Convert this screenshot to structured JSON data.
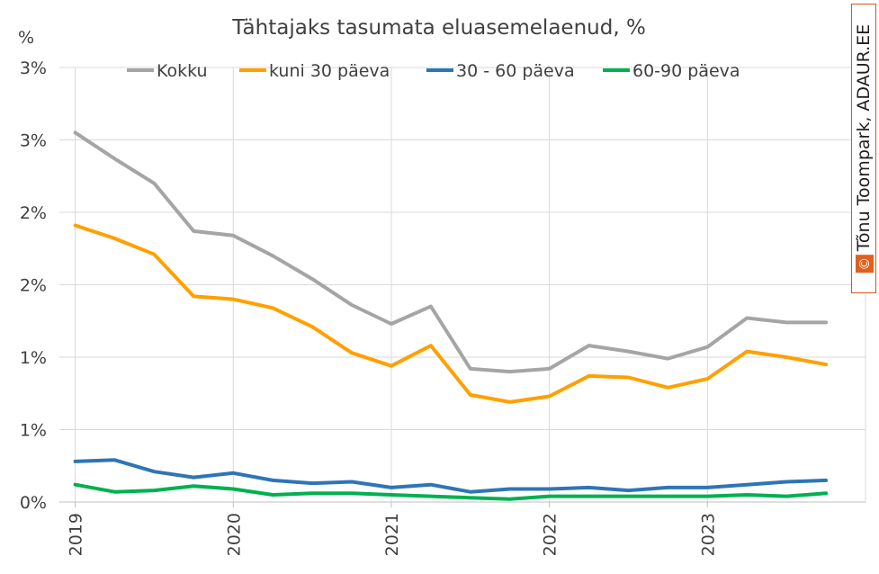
{
  "chart_data": {
    "type": "line",
    "title": "Tähtajaks tasumata eluasemelaenud, %",
    "ylabel": "%",
    "xlabel": "",
    "yticks": [
      "3%",
      "3%",
      "2%",
      "2%",
      "1%",
      "1%",
      "0%"
    ],
    "ytick_values": [
      3.0,
      2.5,
      2.0,
      1.5,
      1.0,
      0.5,
      0.0
    ],
    "ylim": [
      0,
      3.0
    ],
    "xticks": [
      "2019",
      "2020",
      "2021",
      "2022",
      "2023"
    ],
    "xtick_values": [
      2019.0,
      2020.0,
      2021.0,
      2022.0,
      2023.0
    ],
    "xlim": [
      2018.9,
      2024.0
    ],
    "grid": "vertical and horizontal",
    "legend_position": "top",
    "x": [
      2019.0,
      2019.25,
      2019.5,
      2019.75,
      2020.0,
      2020.25,
      2020.5,
      2020.75,
      2021.0,
      2021.25,
      2021.5,
      2021.75,
      2022.0,
      2022.25,
      2022.5,
      2022.75,
      2023.0,
      2023.25,
      2023.5,
      2023.75
    ],
    "series": [
      {
        "name": "Kokku",
        "color": "#a5a5a5",
        "values": [
          2.55,
          2.37,
          2.2,
          1.87,
          1.84,
          1.7,
          1.54,
          1.36,
          1.23,
          1.35,
          0.92,
          0.9,
          0.92,
          1.08,
          1.04,
          0.99,
          1.07,
          1.27,
          1.24,
          1.24
        ]
      },
      {
        "name": "kuni 30 päeva",
        "color": "#ffa000",
        "values": [
          1.91,
          1.82,
          1.71,
          1.42,
          1.4,
          1.34,
          1.21,
          1.03,
          0.94,
          1.08,
          0.74,
          0.69,
          0.73,
          0.87,
          0.86,
          0.79,
          0.85,
          1.04,
          1.0,
          0.95
        ]
      },
      {
        "name": "30 - 60 päeva",
        "color": "#2e75b6",
        "values": [
          0.28,
          0.29,
          0.21,
          0.17,
          0.2,
          0.15,
          0.13,
          0.14,
          0.1,
          0.12,
          0.07,
          0.09,
          0.09,
          0.1,
          0.08,
          0.1,
          0.1,
          0.12,
          0.14,
          0.15
        ]
      },
      {
        "name": "60-90 päeva",
        "color": "#00b050",
        "values": [
          0.12,
          0.07,
          0.08,
          0.11,
          0.09,
          0.05,
          0.06,
          0.06,
          0.05,
          0.04,
          0.03,
          0.02,
          0.04,
          0.04,
          0.04,
          0.04,
          0.04,
          0.05,
          0.04,
          0.06
        ]
      }
    ]
  },
  "copyright": {
    "symbol": "©",
    "text": "Tõnu Toompark, ADAUR.EE",
    "accent_color": "#e0601c"
  }
}
